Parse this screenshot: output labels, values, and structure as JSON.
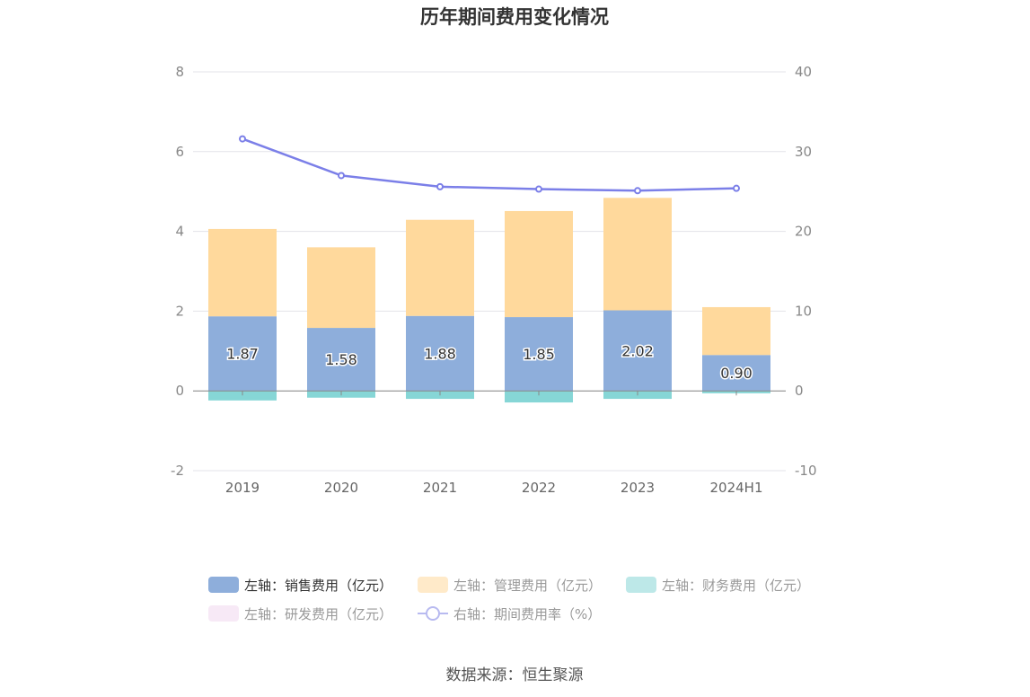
{
  "chart_data": {
    "type": "bar",
    "title": "历年期间费用变化情况",
    "categories": [
      "2019",
      "2020",
      "2021",
      "2022",
      "2023",
      "2024H1"
    ],
    "stacked": true,
    "left_axis": {
      "ylim": [
        -2,
        8
      ],
      "ticks": [
        "-2",
        "0",
        "2",
        "4",
        "6",
        "8"
      ]
    },
    "right_axis": {
      "ylim": [
        -10,
        40
      ],
      "ticks": [
        "-10",
        "0",
        "10",
        "20",
        "30",
        "40"
      ]
    },
    "grid": true,
    "legend_position": "bottom",
    "series": [
      {
        "name": "左轴：销售费用（亿元）",
        "axis": "left",
        "type": "bar",
        "color": "#8eaedb",
        "values": [
          1.87,
          1.58,
          1.88,
          1.85,
          2.02,
          0.9
        ],
        "labels": [
          "1.87",
          "1.58",
          "1.88",
          "1.85",
          "2.02",
          "0.90"
        ]
      },
      {
        "name": "左轴：管理费用（亿元）",
        "axis": "left",
        "type": "bar",
        "color": "#ffd99c",
        "values": [
          2.19,
          2.02,
          2.41,
          2.66,
          2.82,
          1.2
        ]
      },
      {
        "name": "左轴：财务费用（亿元）",
        "axis": "left",
        "type": "bar",
        "color": "#86d6d6",
        "values": [
          -0.24,
          -0.17,
          -0.2,
          -0.29,
          -0.2,
          -0.06
        ]
      },
      {
        "name": "左轴：研发费用（亿元）",
        "axis": "left",
        "type": "bar",
        "color": "#f0d7ee",
        "values": [
          0,
          0,
          0,
          0,
          0,
          0
        ]
      },
      {
        "name": "右轴：期间费用率（%）",
        "axis": "right",
        "type": "line",
        "color": "#7b7fe8",
        "values": [
          31.6,
          27.0,
          25.6,
          25.3,
          25.1,
          25.4
        ]
      }
    ]
  },
  "source": "数据来源：恒生聚源"
}
